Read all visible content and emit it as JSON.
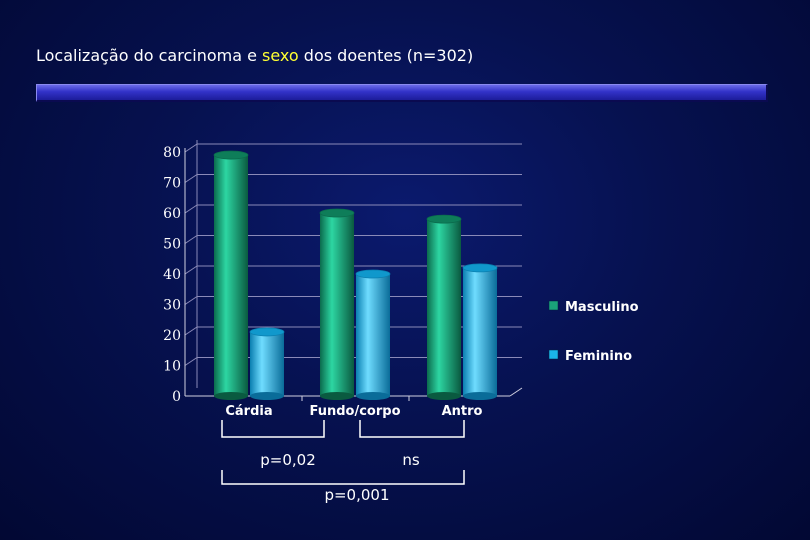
{
  "slide": {
    "title_part1": "Localização do carcinoma e ",
    "title_highlight": "sexo",
    "title_part2": " dos doentes  (n=302)",
    "highlight_color": "#ffff33"
  },
  "chart_data": {
    "type": "bar",
    "categories": [
      "Cárdia",
      "Fundo/corpo",
      "Antro"
    ],
    "series": [
      {
        "name": "Masculino",
        "values": [
          79,
          60,
          58
        ],
        "color": "#1aa37a"
      },
      {
        "name": "Feminino",
        "values": [
          21,
          40,
          42
        ],
        "color": "#1ab4e8"
      }
    ],
    "ylim": [
      0,
      80
    ],
    "yticks": [
      "0",
      "10",
      "20",
      "30",
      "40",
      "50",
      "60",
      "70",
      "80"
    ],
    "grid": true,
    "legend_position": "right",
    "style": "3d-cylinder"
  },
  "annotations": {
    "left_pair": "p=0,02",
    "right_pair": "ns",
    "outer": "p=0,001"
  }
}
